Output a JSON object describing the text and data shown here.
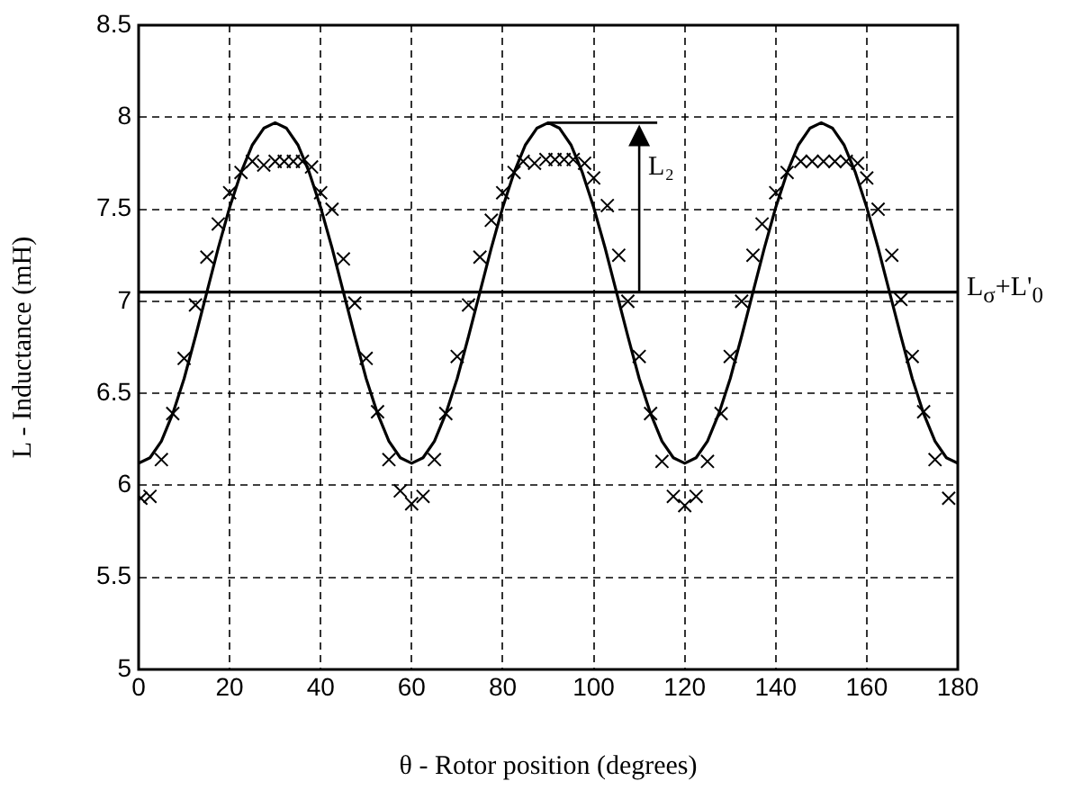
{
  "chart_data": {
    "type": "line",
    "xlabel": "θ - Rotor position (degrees)",
    "ylabel": "L - Inductance (mH)",
    "xlim": [
      0,
      180
    ],
    "xticks": [
      0,
      20,
      40,
      60,
      80,
      100,
      120,
      140,
      160,
      180
    ],
    "ylim": [
      5,
      8.5
    ],
    "yticks": [
      5,
      5.5,
      6,
      6.5,
      7,
      7.5,
      8,
      8.5
    ],
    "grid": true,
    "legend": false,
    "series": [
      {
        "type": "line",
        "color": "#000000",
        "marker": "none",
        "line_style": "solid",
        "x": [
          0,
          2.5,
          5,
          7.5,
          10,
          12.5,
          15,
          17.5,
          20,
          22.5,
          25,
          27.5,
          30,
          32.5,
          35,
          37.5,
          40,
          42.5,
          45,
          47.5,
          50,
          52.5,
          55,
          57.5,
          60,
          62.5,
          65,
          67.5,
          70,
          72.5,
          75,
          77.5,
          80,
          82.5,
          85,
          87.5,
          90,
          92.5,
          95,
          97.5,
          100,
          102.5,
          105,
          107.5,
          110,
          112.5,
          115,
          117.5,
          120,
          122.5,
          125,
          127.5,
          130,
          132.5,
          135,
          137.5,
          140,
          142.5,
          145,
          147.5,
          150,
          152.5,
          155,
          157.5,
          160,
          162.5,
          165,
          167.5,
          170,
          172.5,
          175,
          177.5,
          180
        ],
        "values": [
          6.12,
          6.15,
          6.24,
          6.39,
          6.58,
          6.81,
          7.05,
          7.29,
          7.51,
          7.7,
          7.85,
          7.94,
          7.97,
          7.94,
          7.85,
          7.7,
          7.51,
          7.29,
          7.05,
          6.81,
          6.58,
          6.39,
          6.24,
          6.15,
          6.12,
          6.15,
          6.24,
          6.39,
          6.58,
          6.81,
          7.05,
          7.29,
          7.51,
          7.7,
          7.85,
          7.94,
          7.97,
          7.94,
          7.85,
          7.7,
          7.51,
          7.29,
          7.05,
          6.81,
          6.58,
          6.39,
          6.24,
          6.15,
          6.12,
          6.15,
          6.24,
          6.39,
          6.58,
          6.81,
          7.05,
          7.29,
          7.51,
          7.7,
          7.85,
          7.94,
          7.97,
          7.94,
          7.85,
          7.7,
          7.51,
          7.29,
          7.05,
          6.81,
          6.58,
          6.39,
          6.24,
          6.15,
          6.12
        ]
      },
      {
        "type": "scatter",
        "color": "#000000",
        "marker": "cross",
        "x": [
          0.5,
          2.5,
          5,
          7.5,
          10,
          12.5,
          15,
          17.5,
          20,
          22.5,
          25,
          27.5,
          30,
          32,
          34,
          36,
          38,
          40,
          42.5,
          45,
          47.5,
          50,
          52.5,
          55,
          57.5,
          60,
          62.5,
          65,
          67.5,
          70,
          72.5,
          75,
          77.5,
          80,
          82.5,
          84.5,
          87,
          89.5,
          91.5,
          93.5,
          95.5,
          98,
          100,
          103,
          105.5,
          107.5,
          110,
          112.5,
          115,
          117.5,
          120,
          122.5,
          125,
          128,
          130,
          132.5,
          135,
          137,
          140,
          142.5,
          145.5,
          148,
          150.5,
          153,
          155.5,
          158,
          160,
          162.5,
          165.5,
          167.5,
          170,
          172.5,
          175,
          178
        ],
        "values": [
          5.93,
          5.94,
          6.14,
          6.39,
          6.69,
          6.98,
          7.24,
          7.42,
          7.59,
          7.7,
          7.76,
          7.74,
          7.76,
          7.76,
          7.76,
          7.76,
          7.73,
          7.59,
          7.5,
          7.23,
          6.99,
          6.69,
          6.4,
          6.14,
          5.97,
          5.9,
          5.94,
          6.14,
          6.39,
          6.7,
          6.98,
          7.24,
          7.44,
          7.59,
          7.7,
          7.76,
          7.75,
          7.77,
          7.77,
          7.77,
          7.77,
          7.75,
          7.67,
          7.52,
          7.25,
          7.0,
          6.7,
          6.39,
          6.13,
          5.94,
          5.89,
          5.94,
          6.13,
          6.39,
          6.7,
          7.0,
          7.25,
          7.42,
          7.59,
          7.7,
          7.76,
          7.76,
          7.76,
          7.76,
          7.76,
          7.75,
          7.67,
          7.5,
          7.25,
          7.01,
          6.7,
          6.4,
          6.14,
          5.93
        ]
      }
    ],
    "ref_lines": [
      {
        "axis": "y",
        "value": 7.05,
        "label": "L$_{σ}$+L'$_{0}$",
        "color": "#000000"
      }
    ],
    "annotations": [
      {
        "text": "L₂",
        "x": 110,
        "y": 7.05
      }
    ]
  }
}
